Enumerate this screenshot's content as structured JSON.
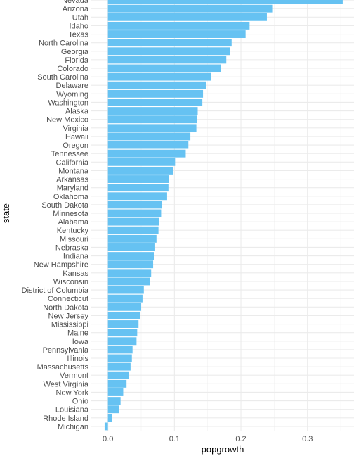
{
  "chart_data": {
    "type": "bar",
    "orientation": "horizontal",
    "xlabel": "popgrowth",
    "ylabel": "state",
    "xlim": [
      -0.025,
      0.37
    ],
    "x_ticks": [
      0.0,
      0.1,
      0.2,
      0.3
    ],
    "x_tick_labels": [
      "0.0",
      "0.1",
      "0.2",
      "0.3"
    ],
    "grid": true,
    "bar_color": "#66c2f2",
    "categories": [
      "Nevada",
      "Arizona",
      "Utah",
      "Idaho",
      "Texas",
      "North Carolina",
      "Georgia",
      "Florida",
      "Colorado",
      "South Carolina",
      "Delaware",
      "Wyoming",
      "Washington",
      "Alaska",
      "New Mexico",
      "Virginia",
      "Hawaii",
      "Oregon",
      "Tennessee",
      "California",
      "Montana",
      "Arkansas",
      "Maryland",
      "Oklahoma",
      "South Dakota",
      "Minnesota",
      "Alabama",
      "Kentucky",
      "Missouri",
      "Nebraska",
      "Indiana",
      "New Hampshire",
      "Kansas",
      "Wisconsin",
      "District of Columbia",
      "Connecticut",
      "North Dakota",
      "New Jersey",
      "Mississippi",
      "Maine",
      "Iowa",
      "Pennsylvania",
      "Illinois",
      "Massachusetts",
      "Vermont",
      "West Virginia",
      "New York",
      "Ohio",
      "Louisiana",
      "Rhode Island",
      "Michigan"
    ],
    "values": [
      0.353,
      0.247,
      0.239,
      0.213,
      0.207,
      0.186,
      0.184,
      0.178,
      0.17,
      0.155,
      0.148,
      0.143,
      0.142,
      0.135,
      0.134,
      0.133,
      0.124,
      0.121,
      0.117,
      0.101,
      0.098,
      0.092,
      0.091,
      0.089,
      0.081,
      0.08,
      0.077,
      0.076,
      0.073,
      0.07,
      0.069,
      0.068,
      0.065,
      0.063,
      0.054,
      0.052,
      0.05,
      0.048,
      0.046,
      0.044,
      0.043,
      0.037,
      0.036,
      0.034,
      0.031,
      0.028,
      0.023,
      0.019,
      0.017,
      0.006,
      -0.005
    ]
  }
}
